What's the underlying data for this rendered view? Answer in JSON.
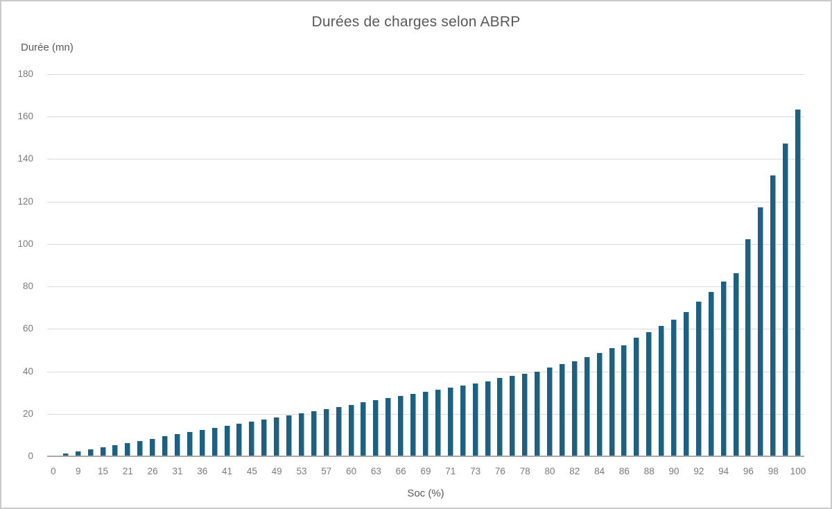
{
  "chart_data": {
    "type": "bar",
    "title": "Durées de charges selon ABRP",
    "ylabel": "Durée (mn)",
    "xlabel": "Soc (%)",
    "ylim": [
      0,
      180
    ],
    "ytick_step": 20,
    "y_tick_labels": [
      "0",
      "20",
      "40",
      "60",
      "80",
      "100",
      "120",
      "140",
      "160",
      "180"
    ],
    "x_tick_labels": [
      "0",
      "9",
      "15",
      "21",
      "26",
      "31",
      "36",
      "41",
      "45",
      "49",
      "53",
      "57",
      "60",
      "63",
      "66",
      "69",
      "71",
      "73",
      "76",
      "78",
      "80",
      "82",
      "84",
      "86",
      "88",
      "90",
      "92",
      "94",
      "96",
      "98",
      "100"
    ],
    "x_tick_every": 2,
    "values": [
      0,
      1,
      2,
      3,
      4,
      5,
      6,
      7,
      8,
      9,
      10,
      11,
      12,
      13,
      14,
      15,
      16,
      17,
      18,
      19,
      20,
      21,
      22,
      23,
      24,
      25,
      26,
      27,
      28,
      29,
      30,
      31,
      32,
      33,
      34,
      35,
      36.5,
      37.5,
      38.5,
      39.5,
      41.5,
      43,
      44.5,
      46.5,
      48.5,
      50.5,
      52,
      55.5,
      58,
      61,
      64,
      67.5,
      72.5,
      77,
      82,
      86,
      102,
      117,
      132,
      147,
      163
    ],
    "grid": true,
    "legend": false,
    "colors": {
      "bar": "#1e6080",
      "bar_edge": "#8fb3c6",
      "gridline": "#d9d9d9",
      "axis_line": "#a9a9a9",
      "tick_text": "#7a7a7a",
      "title_text": "#595959",
      "frame_border": "#c9c9c9"
    }
  }
}
